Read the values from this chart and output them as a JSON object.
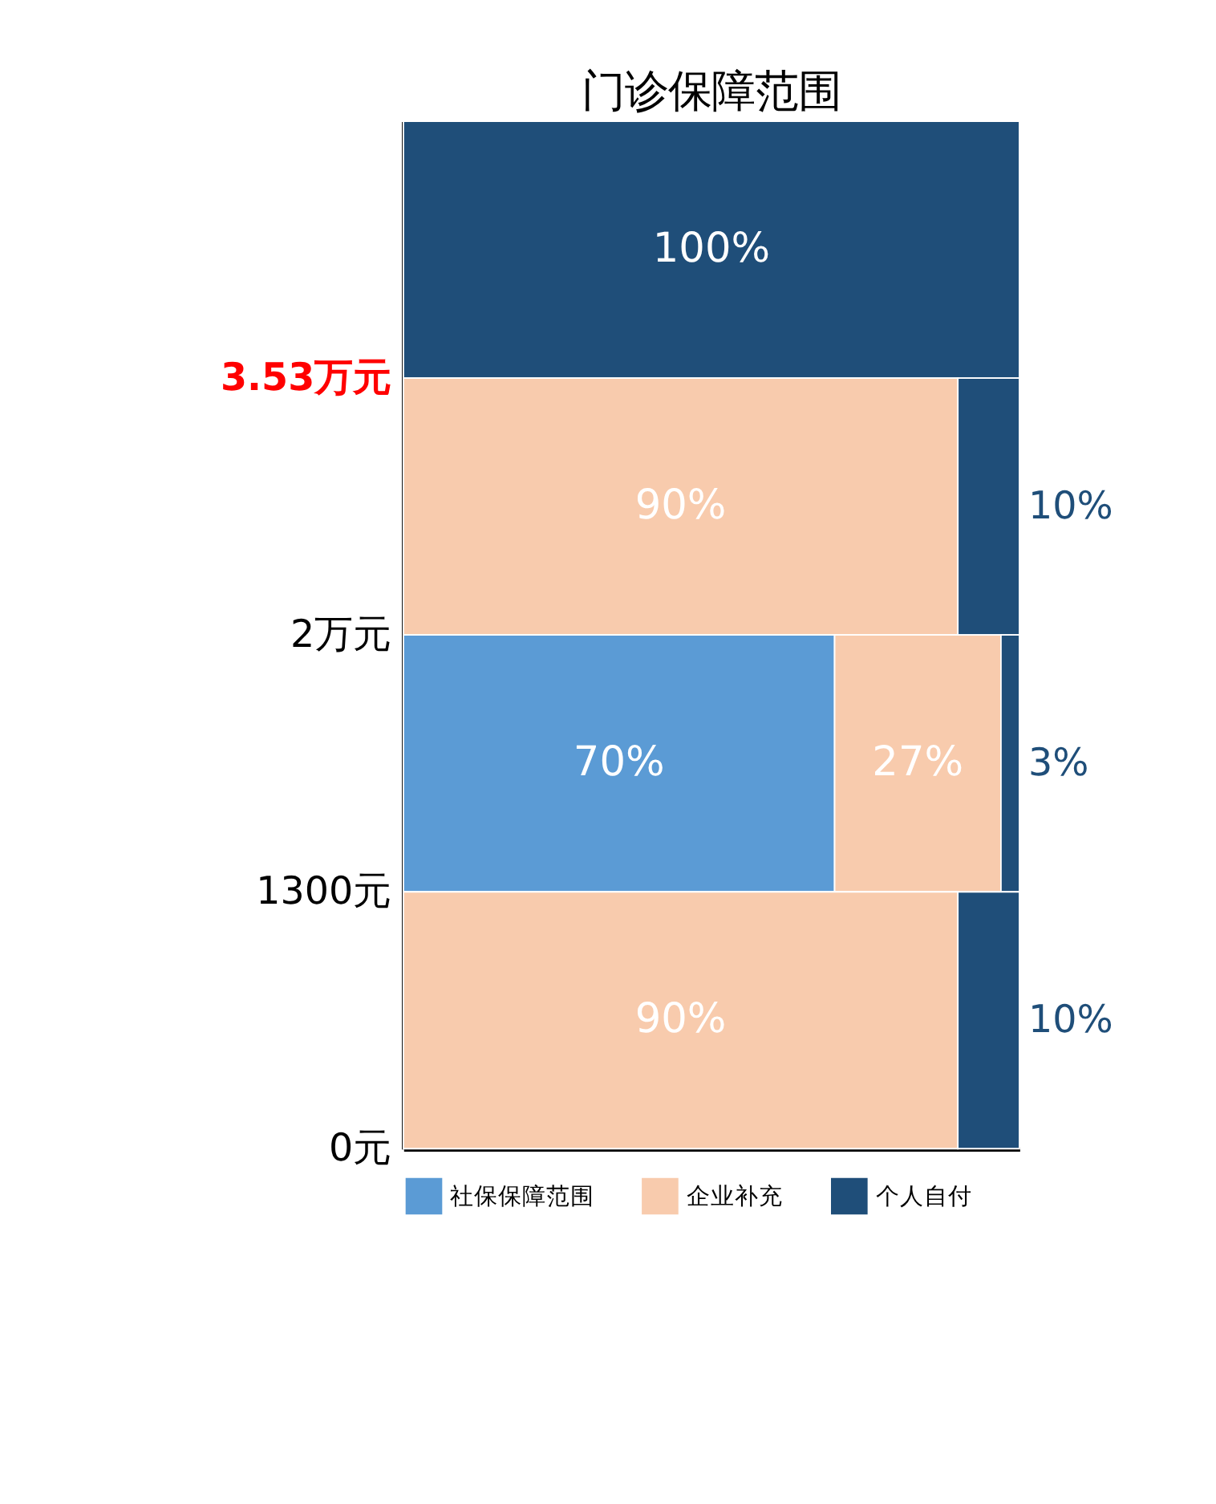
{
  "chart_data": {
    "type": "bar",
    "orientation": "horizontal",
    "stacked": true,
    "title": "门诊保障范围",
    "categories": [
      null,
      null,
      null,
      null
    ],
    "series": [
      {
        "name": "社保保障范围",
        "color": "#5b9bd5",
        "values": [
          null,
          null,
          70,
          null
        ],
        "value_labels": [
          null,
          null,
          "70%",
          null
        ]
      },
      {
        "name": "企业补充",
        "color": "#f8cbad",
        "values": [
          null,
          90,
          27,
          90
        ],
        "value_labels": [
          null,
          "90%",
          "27%",
          "90%"
        ]
      },
      {
        "name": "个人自付",
        "color": "#1f4e79",
        "values": [
          100,
          10,
          3,
          10
        ],
        "value_labels": [
          "100%",
          "10%",
          "3%",
          "10%"
        ]
      }
    ],
    "annotations": [
      "3.53万元",
      "2万元",
      "1300元",
      "0元"
    ],
    "legend": "bottom",
    "tick_labels": false,
    "grid": false
  }
}
